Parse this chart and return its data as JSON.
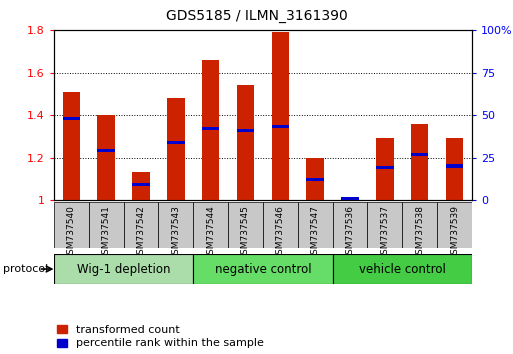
{
  "title": "GDS5185 / ILMN_3161390",
  "samples": [
    "GSM737540",
    "GSM737541",
    "GSM737542",
    "GSM737543",
    "GSM737544",
    "GSM737545",
    "GSM737546",
    "GSM737547",
    "GSM737536",
    "GSM737537",
    "GSM737538",
    "GSM737539"
  ],
  "red_values": [
    1.51,
    1.4,
    1.13,
    1.48,
    1.66,
    1.54,
    1.79,
    1.2,
    1.01,
    1.29,
    1.36,
    1.29
  ],
  "blue_values": [
    0.48,
    0.29,
    0.09,
    0.34,
    0.42,
    0.41,
    0.43,
    0.12,
    0.01,
    0.19,
    0.27,
    0.2
  ],
  "groups": [
    {
      "label": "Wig-1 depletion",
      "start": 0,
      "end": 3,
      "color": "#aaddaa"
    },
    {
      "label": "negative control",
      "start": 4,
      "end": 7,
      "color": "#66dd66"
    },
    {
      "label": "vehicle control",
      "start": 8,
      "end": 11,
      "color": "#44cc44"
    }
  ],
  "ylim_left": [
    1.0,
    1.8
  ],
  "ylim_right": [
    0.0,
    1.0
  ],
  "yticks_left": [
    1.0,
    1.2,
    1.4,
    1.6,
    1.8
  ],
  "yticks_right": [
    0.0,
    0.25,
    0.5,
    0.75,
    1.0
  ],
  "yticklabels_left": [
    "1",
    "1.2",
    "1.4",
    "1.6",
    "1.8"
  ],
  "yticklabels_right": [
    "0",
    "25",
    "50",
    "75",
    "100%"
  ],
  "red_color": "#cc2200",
  "blue_color": "#0000cc",
  "protocol_label": "protocol",
  "legend_red": "transformed count",
  "legend_blue": "percentile rank within the sample",
  "bar_width": 0.5,
  "blue_bar_height": 0.018,
  "sample_box_color": "#c8c8c8"
}
